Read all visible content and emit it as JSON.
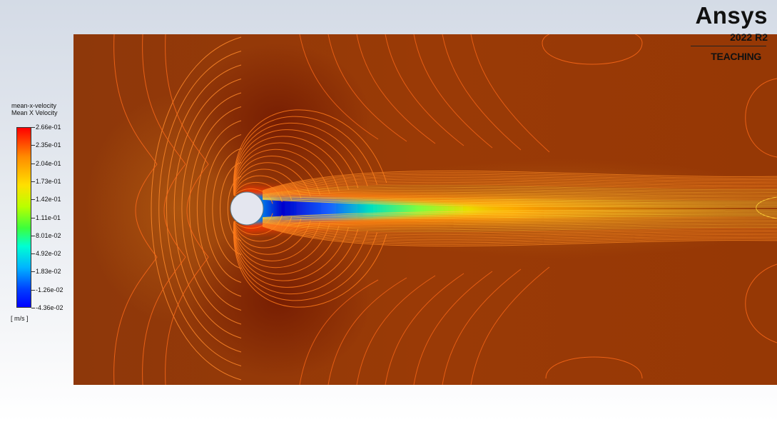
{
  "legend": {
    "title_line1": "mean-x-velocity",
    "title_line2": "Mean X Velocity",
    "ticks": [
      "2.66e-01",
      "2.35e-01",
      "2.04e-01",
      "1.73e-01",
      "1.42e-01",
      "1.11e-01",
      "8.01e-02",
      "4.92e-02",
      "1.83e-02",
      "-1.26e-02",
      "-4.36e-02"
    ],
    "unit": "[ m/s ]",
    "colormap": [
      "#0000ff",
      "#00b4ff",
      "#00ffd2",
      "#3cff3c",
      "#b9ff00",
      "#ffe000",
      "#ff8a00",
      "#ff0000"
    ]
  },
  "logo": {
    "brand": "Ansys",
    "version": "2022 R2",
    "edition": "TEACHING"
  },
  "field": {
    "variable": "mean-x-velocity",
    "min": -0.0436,
    "max": 0.266,
    "freestream_color": "#9a3a06",
    "cylinder_color": "#e4e6ef"
  }
}
